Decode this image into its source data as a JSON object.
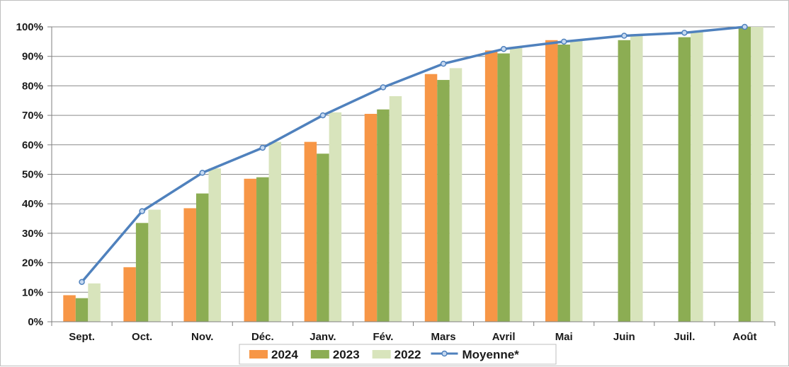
{
  "chart_data": {
    "type": "bar",
    "title": "",
    "xlabel": "",
    "ylabel": "",
    "ylim": [
      0,
      100
    ],
    "yticks": [
      "0%",
      "10%",
      "20%",
      "30%",
      "40%",
      "50%",
      "60%",
      "70%",
      "80%",
      "90%",
      "100%"
    ],
    "categories": [
      "Sept.",
      "Oct.",
      "Nov.",
      "Déc.",
      "Janv.",
      "Fév.",
      "Mars",
      "Avril",
      "Mai",
      "Juin",
      "Juil.",
      "Août"
    ],
    "grid": true,
    "legend_position": "bottom",
    "series": [
      {
        "name": "2024",
        "type": "bar",
        "color": "#f79646",
        "values": [
          9,
          18.5,
          38.5,
          48.5,
          61,
          70.5,
          84,
          92,
          95.5,
          null,
          null,
          null
        ]
      },
      {
        "name": "2023",
        "type": "bar",
        "color": "#8cad53",
        "values": [
          8,
          33.5,
          43.5,
          49,
          57,
          72,
          82,
          91,
          94,
          95.5,
          96.5,
          100
        ]
      },
      {
        "name": "2022",
        "type": "bar",
        "color": "#d8e4bc",
        "values": [
          13,
          38,
          52,
          61,
          71,
          76.5,
          86,
          93,
          95.5,
          97.5,
          98.5,
          100
        ]
      },
      {
        "name": "Moyenne*",
        "type": "line",
        "color": "#4f81bd",
        "values": [
          13.5,
          37.5,
          50.5,
          59,
          70,
          79.5,
          87.5,
          92.5,
          95,
          97,
          98,
          100
        ]
      }
    ]
  }
}
